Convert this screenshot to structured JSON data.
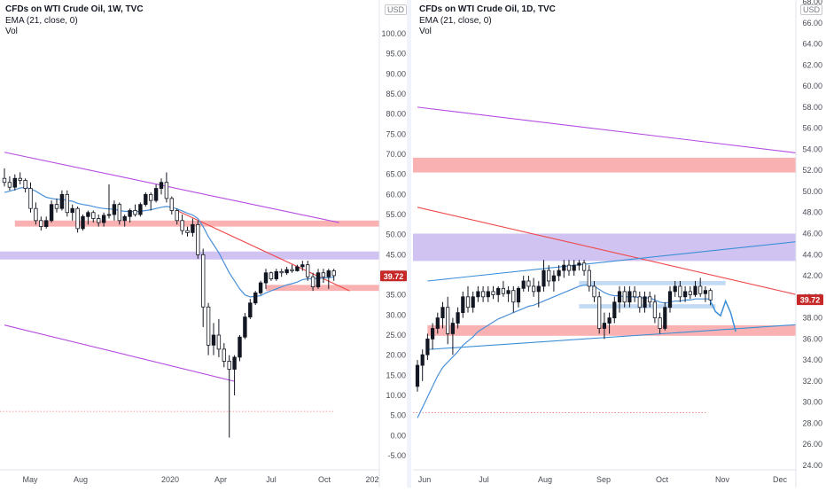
{
  "colors": {
    "up": "#131722",
    "down": "#ffffff",
    "ema": "#4a90d9",
    "trend_red": "#f04848",
    "trend_purple": "#b44be1",
    "trend_blue": "#3b8fd8",
    "zone_red": "#f9a3a3",
    "zone_purple": "#c9b8ee",
    "zone_blue": "#b8d4f2",
    "price_tag": "#c62828",
    "axis_text": "#4a4d57",
    "divider": "#e0e3eb"
  },
  "left_chart": {
    "legend": {
      "title": "CFDs on WTI Crude Oil, 1W, TVC",
      "indicator": "EMA (21, close, 0)",
      "volume": "Vol"
    },
    "currency": "USD",
    "price_tag": "39.72",
    "y_ticks": [
      "100.00",
      "95.00",
      "90.00",
      "85.00",
      "80.00",
      "75.00",
      "70.00",
      "65.00",
      "60.00",
      "55.00",
      "50.00",
      "45.00",
      "40.00",
      "35.00",
      "30.00",
      "25.00",
      "20.00",
      "15.00",
      "10.00",
      "5.00",
      "0.00",
      "-5.00"
    ],
    "x_ticks": [
      "May",
      "Aug",
      "2020",
      "Apr",
      "Jul",
      "Oct",
      "202"
    ]
  },
  "right_chart": {
    "legend": {
      "title": "CFDs on WTI Crude Oil, 1D, TVC",
      "indicator": "EMA (21, close, 0)",
      "volume": "Vol"
    },
    "currency": "USD",
    "price_tag": "39.72",
    "y_ticks": [
      "68.00",
      "66.00",
      "64.00",
      "62.00",
      "60.00",
      "58.00",
      "56.00",
      "54.00",
      "52.00",
      "50.00",
      "48.00",
      "46.00",
      "44.00",
      "42.00",
      "40.00",
      "38.00",
      "36.00",
      "34.00",
      "32.00",
      "30.00",
      "28.00",
      "26.00",
      "24.00"
    ],
    "x_ticks": [
      "Jun",
      "Jul",
      "Aug",
      "Sep",
      "Oct",
      "Nov",
      "Dec"
    ]
  },
  "chart_data": [
    {
      "type": "candlestick",
      "title": "CFDs on WTI Crude Oil, 1W, TVC",
      "indicator": "EMA (21, close, 0)",
      "ylim": [
        -7,
        104
      ],
      "last_price": 39.72,
      "x_ticks": [
        "May",
        "Aug",
        "2020",
        "Apr",
        "Jul",
        "Oct",
        "202"
      ],
      "candles": [
        {
          "o": 64.0,
          "h": 66.5,
          "l": 62.0,
          "c": 63.0
        },
        {
          "o": 63.0,
          "h": 64.5,
          "l": 61.0,
          "c": 61.8
        },
        {
          "o": 61.8,
          "h": 65.0,
          "l": 61.0,
          "c": 64.0
        },
        {
          "o": 64.0,
          "h": 65.5,
          "l": 62.5,
          "c": 63.5
        },
        {
          "o": 63.5,
          "h": 64.0,
          "l": 60.5,
          "c": 61.5
        },
        {
          "o": 61.5,
          "h": 63.0,
          "l": 55.5,
          "c": 56.5
        },
        {
          "o": 56.5,
          "h": 58.0,
          "l": 52.5,
          "c": 53.5
        },
        {
          "o": 53.5,
          "h": 54.5,
          "l": 51.0,
          "c": 52.0
        },
        {
          "o": 52.0,
          "h": 54.5,
          "l": 51.5,
          "c": 53.5
        },
        {
          "o": 53.5,
          "h": 58.5,
          "l": 53.0,
          "c": 57.5
        },
        {
          "o": 57.5,
          "h": 59.0,
          "l": 55.5,
          "c": 56.5
        },
        {
          "o": 56.5,
          "h": 61.0,
          "l": 56.0,
          "c": 60.0
        },
        {
          "o": 60.0,
          "h": 61.0,
          "l": 54.5,
          "c": 55.5
        },
        {
          "o": 55.5,
          "h": 57.5,
          "l": 53.5,
          "c": 56.5
        },
        {
          "o": 56.5,
          "h": 57.0,
          "l": 50.5,
          "c": 51.5
        },
        {
          "o": 51.5,
          "h": 55.0,
          "l": 51.0,
          "c": 54.5
        },
        {
          "o": 54.5,
          "h": 56.0,
          "l": 52.5,
          "c": 55.5
        },
        {
          "o": 55.5,
          "h": 56.0,
          "l": 53.0,
          "c": 54.0
        },
        {
          "o": 54.0,
          "h": 55.0,
          "l": 52.0,
          "c": 53.0
        },
        {
          "o": 53.0,
          "h": 55.5,
          "l": 52.0,
          "c": 54.8
        },
        {
          "o": 54.8,
          "h": 62.5,
          "l": 54.0,
          "c": 55.0
        },
        {
          "o": 55.0,
          "h": 58.5,
          "l": 53.5,
          "c": 57.5
        },
        {
          "o": 57.5,
          "h": 58.0,
          "l": 52.5,
          "c": 53.5
        },
        {
          "o": 53.5,
          "h": 55.0,
          "l": 52.0,
          "c": 54.5
        },
        {
          "o": 54.5,
          "h": 56.5,
          "l": 53.0,
          "c": 56.0
        },
        {
          "o": 56.0,
          "h": 57.5,
          "l": 54.5,
          "c": 55.0
        },
        {
          "o": 55.0,
          "h": 58.0,
          "l": 54.5,
          "c": 57.5
        },
        {
          "o": 57.5,
          "h": 60.5,
          "l": 57.0,
          "c": 60.0
        },
        {
          "o": 60.0,
          "h": 60.5,
          "l": 56.0,
          "c": 58.5
        },
        {
          "o": 58.5,
          "h": 62.5,
          "l": 58.0,
          "c": 61.5
        },
        {
          "o": 61.5,
          "h": 64.0,
          "l": 60.0,
          "c": 63.0
        },
        {
          "o": 63.0,
          "h": 65.5,
          "l": 58.0,
          "c": 59.0
        },
        {
          "o": 59.0,
          "h": 59.5,
          "l": 55.0,
          "c": 56.0
        },
        {
          "o": 56.0,
          "h": 56.5,
          "l": 52.5,
          "c": 53.5
        },
        {
          "o": 53.5,
          "h": 55.0,
          "l": 50.0,
          "c": 51.0
        },
        {
          "o": 51.0,
          "h": 52.0,
          "l": 49.5,
          "c": 50.5
        },
        {
          "o": 50.5,
          "h": 54.0,
          "l": 49.5,
          "c": 52.5
        },
        {
          "o": 52.5,
          "h": 53.5,
          "l": 44.0,
          "c": 45.0
        },
        {
          "o": 45.0,
          "h": 46.5,
          "l": 27.0,
          "c": 32.0
        },
        {
          "o": 32.0,
          "h": 33.0,
          "l": 20.0,
          "c": 22.5
        },
        {
          "o": 22.5,
          "h": 28.0,
          "l": 20.0,
          "c": 25.0
        },
        {
          "o": 25.0,
          "h": 29.0,
          "l": 19.5,
          "c": 21.5
        },
        {
          "o": 21.5,
          "h": 23.0,
          "l": 17.0,
          "c": 18.5
        },
        {
          "o": 18.5,
          "h": 20.0,
          "l": -0.5,
          "c": 16.5
        },
        {
          "o": 16.5,
          "h": 20.0,
          "l": 10.0,
          "c": 19.5
        },
        {
          "o": 19.5,
          "h": 25.0,
          "l": 18.5,
          "c": 24.5
        },
        {
          "o": 24.5,
          "h": 30.5,
          "l": 24.0,
          "c": 29.5
        },
        {
          "o": 29.5,
          "h": 34.0,
          "l": 29.0,
          "c": 33.0
        },
        {
          "o": 33.0,
          "h": 36.0,
          "l": 32.5,
          "c": 35.5
        },
        {
          "o": 35.5,
          "h": 38.5,
          "l": 35.0,
          "c": 38.0
        },
        {
          "o": 38.0,
          "h": 41.5,
          "l": 36.5,
          "c": 40.5
        },
        {
          "o": 40.5,
          "h": 40.8,
          "l": 38.5,
          "c": 39.0
        },
        {
          "o": 39.0,
          "h": 41.5,
          "l": 38.5,
          "c": 40.8
        },
        {
          "o": 40.8,
          "h": 41.5,
          "l": 39.5,
          "c": 40.5
        },
        {
          "o": 40.5,
          "h": 42.0,
          "l": 40.0,
          "c": 41.3
        },
        {
          "o": 41.3,
          "h": 42.5,
          "l": 40.5,
          "c": 41.0
        },
        {
          "o": 41.0,
          "h": 42.5,
          "l": 40.8,
          "c": 42.0
        },
        {
          "o": 42.0,
          "h": 43.5,
          "l": 41.0,
          "c": 42.5
        },
        {
          "o": 42.5,
          "h": 43.5,
          "l": 38.5,
          "c": 39.5
        },
        {
          "o": 39.5,
          "h": 40.5,
          "l": 36.0,
          "c": 37.0
        },
        {
          "o": 37.0,
          "h": 41.5,
          "l": 36.5,
          "c": 40.5
        },
        {
          "o": 40.5,
          "h": 41.5,
          "l": 38.0,
          "c": 39.5
        },
        {
          "o": 39.5,
          "h": 41.5,
          "l": 36.5,
          "c": 41.0
        },
        {
          "o": 41.0,
          "h": 41.5,
          "l": 38.5,
          "c": 39.8
        }
      ],
      "ema": [
        60.5,
        60.8,
        61.2,
        61.6,
        61.8,
        61.4,
        60.8,
        60.0,
        59.3,
        59.0,
        58.8,
        58.8,
        58.5,
        58.3,
        57.8,
        57.5,
        57.3,
        57.0,
        56.7,
        56.5,
        56.4,
        56.3,
        56.0,
        55.8,
        55.8,
        55.7,
        55.8,
        56.0,
        56.2,
        56.5,
        56.8,
        57.0,
        56.8,
        56.4,
        55.9,
        55.3,
        54.9,
        54.0,
        52.0,
        49.5,
        47.5,
        45.5,
        43.0,
        40.5,
        38.5,
        36.5,
        35.0,
        34.5,
        34.6,
        34.8,
        35.5,
        36.0,
        36.5,
        37.0,
        37.5,
        37.8,
        38.2,
        38.8,
        39.0,
        39.0,
        39.1,
        39.2,
        39.3,
        39.4
      ],
      "zones": [
        {
          "label": "red",
          "from": 52.0,
          "to": 53.5,
          "color": "red"
        },
        {
          "label": "purple",
          "from": 43.8,
          "to": 45.8,
          "color": "purple"
        },
        {
          "label": "red",
          "from": 36.0,
          "to": 37.5,
          "color": "red"
        }
      ],
      "trendlines": [
        {
          "color": "purple",
          "from": [
            0,
            70.5
          ],
          "to": [
            64,
            53.0
          ]
        },
        {
          "color": "purple",
          "from": [
            0,
            27.5
          ],
          "to": [
            44,
            13.5
          ]
        },
        {
          "color": "red",
          "from": [
            33,
            56.0
          ],
          "to": [
            66,
            36.0
          ]
        }
      ],
      "reference_level": 6.0
    },
    {
      "type": "candlestick",
      "title": "CFDs on WTI Crude Oil, 1D, TVC",
      "indicator": "EMA (21, close, 0)",
      "ylim": [
        23.0,
        68.6
      ],
      "last_price": 39.72,
      "x_ticks": [
        "Jun",
        "Jul",
        "Aug",
        "Sep",
        "Oct",
        "Nov",
        "Dec"
      ],
      "candles": [
        {
          "o": 31.5,
          "h": 34.0,
          "l": 31.0,
          "c": 33.5
        },
        {
          "o": 33.5,
          "h": 35.0,
          "l": 32.0,
          "c": 34.5
        },
        {
          "o": 34.5,
          "h": 36.5,
          "l": 34.0,
          "c": 36.0
        },
        {
          "o": 36.0,
          "h": 37.5,
          "l": 35.0,
          "c": 37.0
        },
        {
          "o": 37.0,
          "h": 38.5,
          "l": 36.5,
          "c": 38.0
        },
        {
          "o": 38.0,
          "h": 39.5,
          "l": 37.0,
          "c": 39.0
        },
        {
          "o": 39.0,
          "h": 40.0,
          "l": 35.5,
          "c": 36.5
        },
        {
          "o": 36.5,
          "h": 38.0,
          "l": 34.5,
          "c": 37.5
        },
        {
          "o": 37.5,
          "h": 39.0,
          "l": 37.0,
          "c": 38.5
        },
        {
          "o": 38.5,
          "h": 40.5,
          "l": 38.0,
          "c": 40.0
        },
        {
          "o": 40.0,
          "h": 41.0,
          "l": 38.5,
          "c": 39.0
        },
        {
          "o": 39.0,
          "h": 40.5,
          "l": 38.5,
          "c": 40.0
        },
        {
          "o": 40.0,
          "h": 41.0,
          "l": 39.5,
          "c": 40.5
        },
        {
          "o": 40.5,
          "h": 41.0,
          "l": 39.5,
          "c": 40.0
        },
        {
          "o": 40.0,
          "h": 41.0,
          "l": 39.5,
          "c": 40.5
        },
        {
          "o": 40.5,
          "h": 41.0,
          "l": 39.8,
          "c": 40.2
        },
        {
          "o": 40.2,
          "h": 41.0,
          "l": 39.5,
          "c": 40.8
        },
        {
          "o": 40.8,
          "h": 41.5,
          "l": 40.0,
          "c": 40.3
        },
        {
          "o": 40.3,
          "h": 41.0,
          "l": 39.5,
          "c": 40.6
        },
        {
          "o": 40.6,
          "h": 41.0,
          "l": 38.5,
          "c": 39.5
        },
        {
          "o": 39.5,
          "h": 41.0,
          "l": 39.0,
          "c": 40.8
        },
        {
          "o": 40.8,
          "h": 42.0,
          "l": 40.5,
          "c": 41.5
        },
        {
          "o": 41.5,
          "h": 42.0,
          "l": 40.5,
          "c": 41.0
        },
        {
          "o": 41.0,
          "h": 41.8,
          "l": 40.0,
          "c": 40.5
        },
        {
          "o": 40.5,
          "h": 41.5,
          "l": 39.0,
          "c": 41.0
        },
        {
          "o": 41.0,
          "h": 43.5,
          "l": 40.5,
          "c": 42.5
        },
        {
          "o": 42.5,
          "h": 43.0,
          "l": 41.0,
          "c": 41.5
        },
        {
          "o": 41.5,
          "h": 42.5,
          "l": 40.5,
          "c": 42.0
        },
        {
          "o": 42.0,
          "h": 43.0,
          "l": 41.5,
          "c": 42.5
        },
        {
          "o": 42.5,
          "h": 43.5,
          "l": 41.8,
          "c": 43.0
        },
        {
          "o": 43.0,
          "h": 43.5,
          "l": 42.0,
          "c": 42.5
        },
        {
          "o": 42.5,
          "h": 43.5,
          "l": 42.0,
          "c": 43.0
        },
        {
          "o": 43.0,
          "h": 43.5,
          "l": 42.5,
          "c": 43.2
        },
        {
          "o": 43.2,
          "h": 43.5,
          "l": 42.0,
          "c": 42.5
        },
        {
          "o": 42.5,
          "h": 43.0,
          "l": 40.5,
          "c": 41.0
        },
        {
          "o": 41.0,
          "h": 41.5,
          "l": 39.5,
          "c": 40.0
        },
        {
          "o": 40.0,
          "h": 40.5,
          "l": 36.5,
          "c": 37.0
        },
        {
          "o": 37.0,
          "h": 38.5,
          "l": 36.0,
          "c": 37.5
        },
        {
          "o": 37.5,
          "h": 38.5,
          "l": 36.5,
          "c": 38.0
        },
        {
          "o": 38.0,
          "h": 40.0,
          "l": 37.5,
          "c": 39.5
        },
        {
          "o": 39.5,
          "h": 41.0,
          "l": 38.5,
          "c": 40.5
        },
        {
          "o": 40.5,
          "h": 41.0,
          "l": 39.0,
          "c": 39.5
        },
        {
          "o": 39.5,
          "h": 41.0,
          "l": 39.0,
          "c": 40.5
        },
        {
          "o": 40.5,
          "h": 41.0,
          "l": 39.5,
          "c": 40.0
        },
        {
          "o": 40.0,
          "h": 40.5,
          "l": 38.5,
          "c": 39.0
        },
        {
          "o": 39.0,
          "h": 40.5,
          "l": 38.5,
          "c": 40.0
        },
        {
          "o": 40.0,
          "h": 40.5,
          "l": 39.0,
          "c": 39.5
        },
        {
          "o": 39.5,
          "h": 40.2,
          "l": 37.5,
          "c": 38.0
        },
        {
          "o": 38.0,
          "h": 38.5,
          "l": 36.5,
          "c": 37.0
        },
        {
          "o": 37.0,
          "h": 39.5,
          "l": 36.8,
          "c": 39.0
        },
        {
          "o": 39.0,
          "h": 41.0,
          "l": 38.5,
          "c": 40.5
        },
        {
          "o": 40.5,
          "h": 41.5,
          "l": 40.0,
          "c": 41.0
        },
        {
          "o": 41.0,
          "h": 41.5,
          "l": 39.5,
          "c": 40.0
        },
        {
          "o": 40.0,
          "h": 41.0,
          "l": 39.5,
          "c": 40.5
        },
        {
          "o": 40.5,
          "h": 41.0,
          "l": 39.8,
          "c": 40.2
        },
        {
          "o": 40.2,
          "h": 41.5,
          "l": 40.0,
          "c": 41.0
        },
        {
          "o": 41.0,
          "h": 41.8,
          "l": 40.0,
          "c": 40.3
        },
        {
          "o": 40.3,
          "h": 41.0,
          "l": 39.5,
          "c": 40.6
        },
        {
          "o": 40.6,
          "h": 40.8,
          "l": 39.2,
          "c": 39.7
        }
      ],
      "ema": [
        28.5,
        29.5,
        30.5,
        31.5,
        32.5,
        33.3,
        33.8,
        34.3,
        34.8,
        35.4,
        35.8,
        36.2,
        36.7,
        37.0,
        37.3,
        37.6,
        37.9,
        38.1,
        38.3,
        38.5,
        38.7,
        38.9,
        39.1,
        39.2,
        39.4,
        39.6,
        39.8,
        40.0,
        40.2,
        40.4,
        40.6,
        40.8,
        41.0,
        41.1,
        41.1,
        41.0,
        40.7,
        40.4,
        40.2,
        40.1,
        40.1,
        40.0,
        40.0,
        40.0,
        39.9,
        39.9,
        39.9,
        39.7,
        39.5,
        39.4,
        39.5,
        39.6,
        39.6,
        39.7,
        39.7,
        39.8,
        39.8,
        39.8,
        39.8
      ],
      "projection": [
        [
          58,
          39.6
        ],
        [
          59,
          38.6
        ],
        [
          60,
          38.2
        ],
        [
          61,
          39.6
        ],
        [
          62,
          38.5
        ],
        [
          63,
          36.7
        ]
      ],
      "zones": [
        {
          "label": "red",
          "from": 51.8,
          "to": 53.2,
          "color": "red"
        },
        {
          "label": "purple",
          "from": 43.4,
          "to": 46.0,
          "color": "purple"
        },
        {
          "label": "red",
          "from": 36.3,
          "to": 37.3,
          "color": "red"
        },
        {
          "label": "blue",
          "from": 41.1,
          "to": 41.5,
          "color": "blue"
        },
        {
          "label": "blue",
          "from": 38.9,
          "to": 39.3,
          "color": "blue"
        }
      ],
      "trendlines": [
        {
          "color": "purple",
          "from": [
            0,
            58.0
          ],
          "to": [
            95,
            52.5
          ]
        },
        {
          "color": "red",
          "from": [
            0,
            48.5
          ],
          "to": [
            95,
            38.0
          ]
        },
        {
          "color": "blue",
          "from": [
            2,
            41.5
          ],
          "to": [
            90,
            46.0
          ]
        },
        {
          "color": "blue",
          "from": [
            2,
            35.0
          ],
          "to": [
            95,
            38.0
          ]
        }
      ],
      "reference_level": 29.0
    }
  ]
}
